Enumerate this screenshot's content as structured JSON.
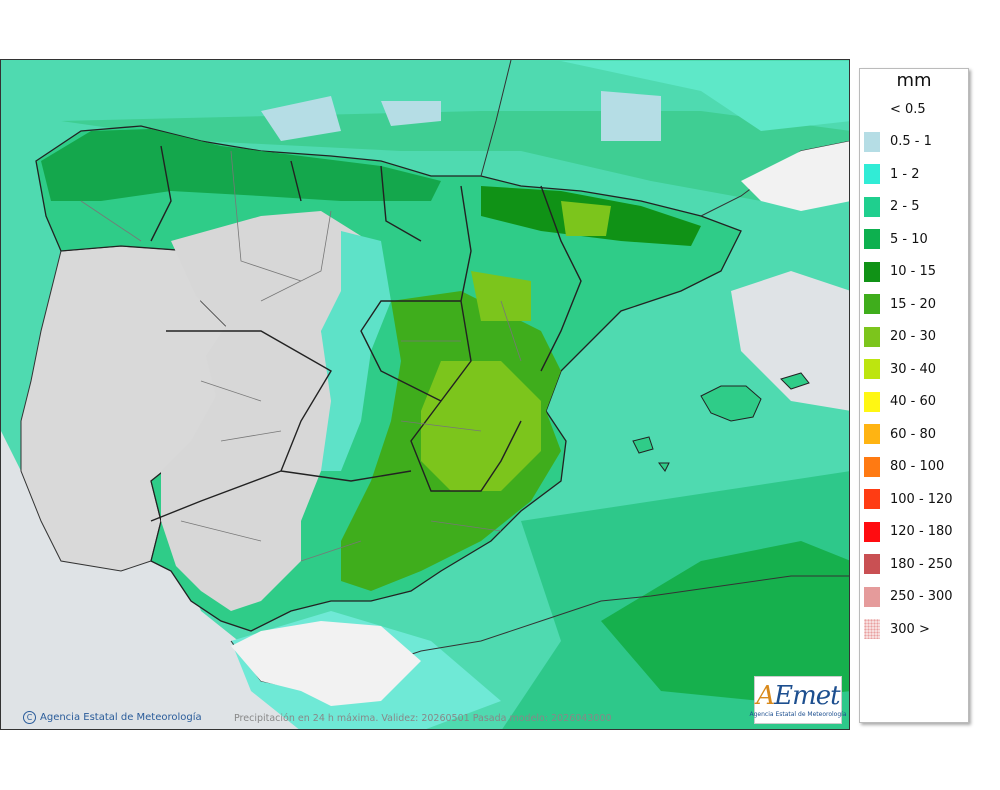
{
  "map": {
    "credit": "Agencia Estatal de Meteorología",
    "caption": "Precipitación en 24 h máxima. Validez: 20260501 Pasada modelo: 2026043000",
    "logo_text": "AEmet",
    "logo_subtitle": "Agencia Estatal de Meteorología",
    "colors": {
      "sea_base": "#4fdab0",
      "land_dry": "#d7d7d7",
      "ocean_dry": "#dfe3e6"
    }
  },
  "legend": {
    "unit": "mm",
    "items": [
      {
        "label": "< 0.5",
        "color": "#ffffff"
      },
      {
        "label": "0.5 - 1",
        "color": "#b5dde5"
      },
      {
        "label": "1 - 2",
        "color": "#31ecd6"
      },
      {
        "label": "2 - 5",
        "color": "#1fcf8e"
      },
      {
        "label": "5 - 10",
        "color": "#0db04f"
      },
      {
        "label": "10 - 15",
        "color": "#109216"
      },
      {
        "label": "15 - 20",
        "color": "#3fad1c"
      },
      {
        "label": "20 - 30",
        "color": "#7cc51c"
      },
      {
        "label": "30 - 40",
        "color": "#bde50f"
      },
      {
        "label": "40 - 60",
        "color": "#fff713"
      },
      {
        "label": "60 - 80",
        "color": "#ffb412"
      },
      {
        "label": "80 - 100",
        "color": "#ff7a12"
      },
      {
        "label": "100 - 120",
        "color": "#ff3c13"
      },
      {
        "label": "120 - 180",
        "color": "#ff0c10"
      },
      {
        "label": "180 - 250",
        "color": "#c95053"
      },
      {
        "label": "250 - 300",
        "color": "#e59b9b"
      },
      {
        "label": "300 >",
        "color": "#f3c7c7",
        "pattern": "dotted"
      }
    ]
  }
}
